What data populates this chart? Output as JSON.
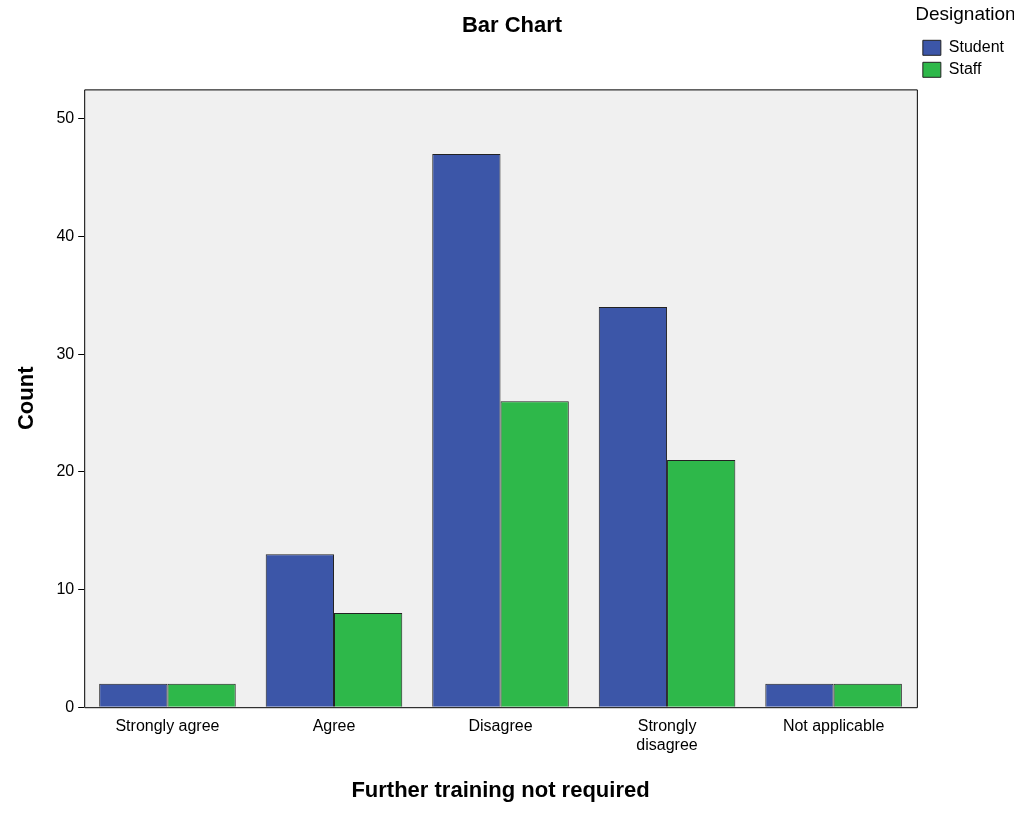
{
  "chart_data": {
    "type": "bar",
    "title": "Bar Chart",
    "xlabel": "Further training not required",
    "ylabel": "Count",
    "legend_title": "Designation",
    "categories": [
      "Strongly agree",
      "Agree",
      "Disagree",
      "Strongly disagree",
      "Not applicable"
    ],
    "series": [
      {
        "name": "Student",
        "color": "#3c56a8",
        "values": [
          2,
          13,
          47,
          34,
          2
        ]
      },
      {
        "name": "Staff",
        "color": "#2eb84a",
        "values": [
          2,
          8,
          26,
          21,
          2
        ]
      }
    ],
    "ylim": [
      0,
      52.5
    ],
    "yticks": [
      0,
      10,
      20,
      30,
      40,
      50
    ],
    "grid": false,
    "legend": "top right"
  }
}
